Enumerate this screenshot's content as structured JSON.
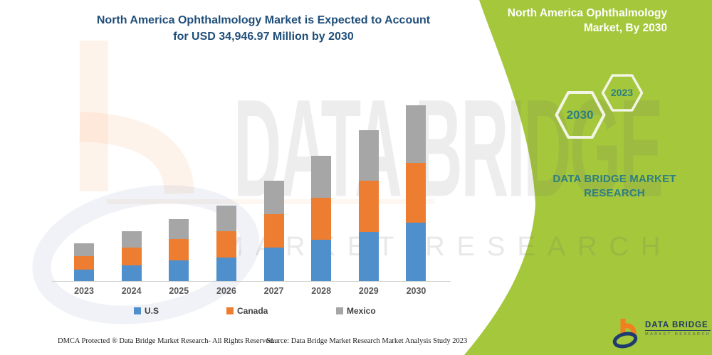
{
  "header": {
    "title_line1": "North America Ophthalmology Market is Expected to Account",
    "title_line2": "for USD 34,946.97 Million by 2030"
  },
  "panel": {
    "title_line1": "North America Ophthalmology",
    "title_line2": "Market, By 2030",
    "hexagon_big_label": "2030",
    "hexagon_small_label": "2023",
    "brand_line1": "DATA BRIDGE MARKET",
    "brand_line2": "RESEARCH",
    "panel_color": "#A4C73C",
    "text_color": "#2E7F80"
  },
  "watermark": {
    "big_text": "DATA BRIDGE",
    "letter_row": "MARKET RESEARCH"
  },
  "chart_data": {
    "type": "bar",
    "stacked": true,
    "title": "North America Ophthalmology Market is Expected to Account for USD 34,946.97 Million by 2030",
    "unit": "USD Million",
    "categories": [
      "2023",
      "2024",
      "2025",
      "2026",
      "2027",
      "2028",
      "2029",
      "2030"
    ],
    "series": [
      {
        "name": "U.S",
        "color": "#4F8FCB",
        "values": [
          2260,
          3060,
          4090,
          4660,
          6630,
          8140,
          9830,
          11610
        ]
      },
      {
        "name": "Canada",
        "color": "#ED7D31",
        "values": [
          2720,
          3630,
          4280,
          5180,
          6730,
          8470,
          10160,
          11910
        ]
      },
      {
        "name": "Mexico",
        "color": "#A6A6A6",
        "values": [
          2540,
          3250,
          3990,
          5120,
          6530,
          8370,
          10020,
          11430
        ]
      }
    ],
    "totals": [
      7520,
      9940,
      12360,
      14960,
      19890,
      24980,
      30010,
      34947
    ],
    "highlight_value_2030": "34,946.97",
    "xlabel": "",
    "ylabel": "",
    "ylim": [
      0,
      37500
    ],
    "grid": false,
    "legend_position": "bottom"
  },
  "footer": {
    "dmca": "DMCA Protected ® Data Bridge Market Research-  All Rights Reserved.",
    "source": "Source: Data Bridge Market Research  Market Analysis Study 2023"
  },
  "logo": {
    "name_line": "DATA BRIDGE",
    "sub_line": "MARKET RESEARCH"
  }
}
